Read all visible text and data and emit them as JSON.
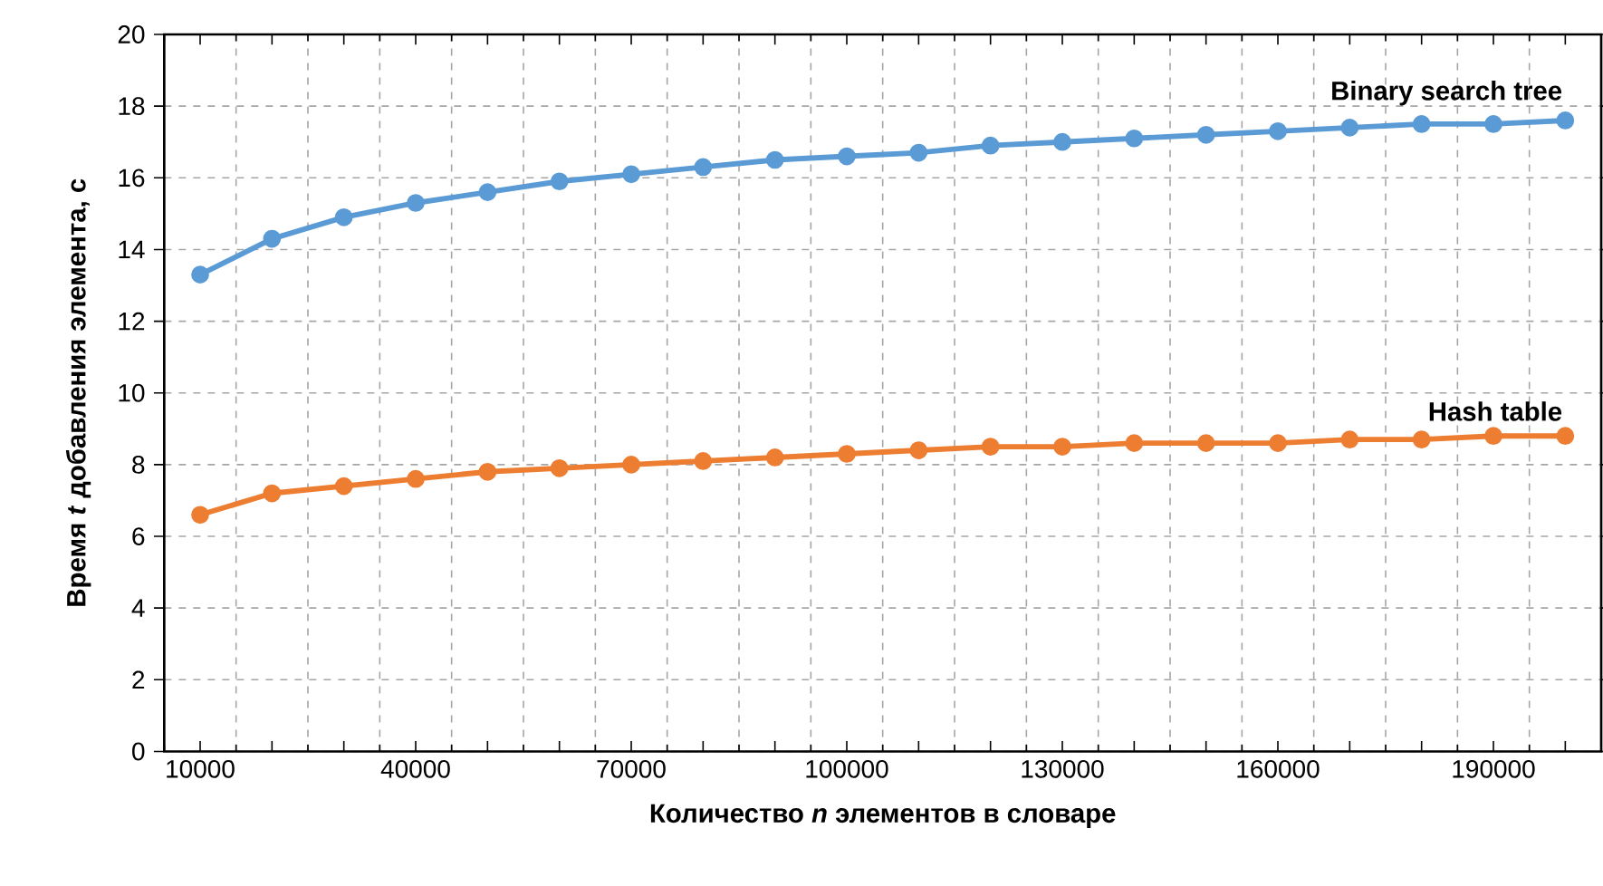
{
  "chart_data": {
    "type": "line",
    "xlabel": "Количество *n* элементов в словаре",
    "ylabel": "Время *t* добавления элемента, с",
    "categories": [
      "10000",
      null,
      null,
      "40000",
      null,
      null,
      "70000",
      null,
      null,
      "100000",
      null,
      null,
      "130000",
      null,
      null,
      "160000",
      null,
      null,
      "190000",
      null
    ],
    "ylim": [
      0,
      20
    ],
    "yticks": [
      0,
      2,
      4,
      6,
      8,
      10,
      12,
      14,
      16,
      18,
      20
    ],
    "grid": true,
    "marker": "circle",
    "line_style": "solid",
    "series": [
      {
        "name": "Binary search tree",
        "color": "#5b9bd5",
        "values": [
          13.3,
          14.3,
          14.9,
          15.3,
          15.6,
          15.9,
          16.1,
          16.3,
          16.5,
          16.6,
          16.7,
          16.9,
          17.0,
          17.1,
          17.2,
          17.3,
          17.4,
          17.5,
          17.5,
          17.6
        ]
      },
      {
        "name": "Hash table",
        "color": "#ed7d31",
        "values": [
          6.6,
          7.2,
          7.4,
          7.6,
          7.8,
          7.9,
          8.0,
          8.1,
          8.2,
          8.3,
          8.4,
          8.5,
          8.5,
          8.6,
          8.6,
          8.6,
          8.7,
          8.7,
          8.8,
          8.8
        ]
      }
    ]
  }
}
